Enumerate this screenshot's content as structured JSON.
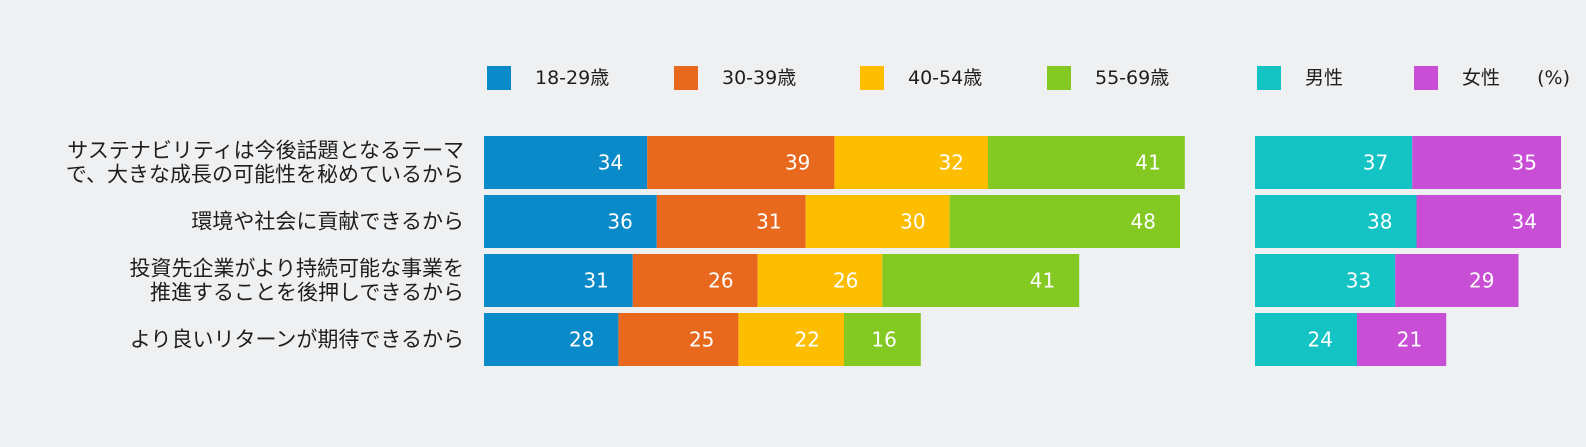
{
  "chart_data": [
    {
      "type": "bar",
      "orientation": "horizontal",
      "stacked": true,
      "categories": [
        [
          "サステナビリティは今後話題となるテーマ",
          "で、大きな成長の可能性を秘めているから"
        ],
        [
          "環境や社会に貢献できるから"
        ],
        [
          "投資先企業がより持続可能な事業を",
          "推進することを後押しできるから"
        ],
        [
          "より良いリターンが期待できるから"
        ]
      ],
      "series": [
        {
          "name": "18-29歳",
          "color": "#0a8ac8",
          "values": [
            34,
            36,
            31,
            28
          ]
        },
        {
          "name": "30-39歳",
          "color": "#e8691d",
          "values": [
            39,
            31,
            26,
            25
          ]
        },
        {
          "name": "40-54歳",
          "color": "#fdbd00",
          "values": [
            32,
            30,
            26,
            22
          ]
        },
        {
          "name": "55-69歳",
          "color": "#83c922",
          "values": [
            41,
            48,
            41,
            16
          ]
        }
      ],
      "grid": false,
      "legend_position": "top"
    },
    {
      "type": "bar",
      "orientation": "horizontal",
      "stacked": true,
      "series": [
        {
          "name": "男性",
          "color": "#14c3c4",
          "values": [
            37,
            38,
            33,
            24
          ]
        },
        {
          "name": "女性",
          "color": "#c84ed6",
          "values": [
            35,
            34,
            29,
            21
          ]
        }
      ],
      "unit": "(%)",
      "grid": false,
      "legend_position": "top"
    }
  ]
}
